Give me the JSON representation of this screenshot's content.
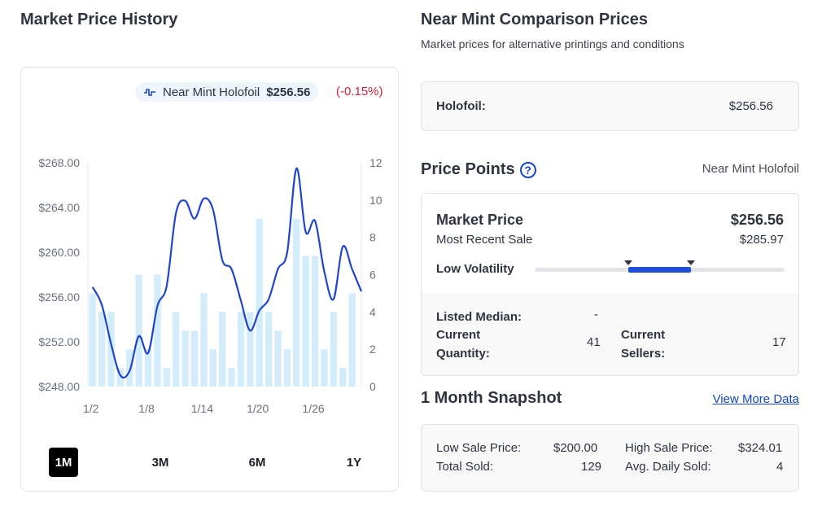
{
  "left": {
    "title": "Market Price History",
    "legend": {
      "label": "Near Mint Holofoil",
      "price": "$256.56",
      "change": "(-0.15%)",
      "icon": "line-chart-icon"
    },
    "ranges": [
      "1M",
      "3M",
      "6M",
      "1Y"
    ],
    "active_range": "1M"
  },
  "chart_data": {
    "type": "line",
    "y_left_ticks": [
      "$268.00",
      "$264.00",
      "$260.00",
      "$256.00",
      "$252.00",
      "$248.00"
    ],
    "y_left_range": [
      248,
      268
    ],
    "y_right_ticks": [
      "12",
      "10",
      "8",
      "6",
      "4",
      "2",
      "0"
    ],
    "y_right_range": [
      0,
      12
    ],
    "x_tick_labels": [
      "1/2",
      "1/8",
      "1/14",
      "1/20",
      "1/26"
    ],
    "x_tick_days": [
      2,
      8,
      14,
      20,
      26
    ],
    "x_domain": [
      2,
      31
    ],
    "bars": {
      "name": "Quantity Sold",
      "color": "#d3ecfb",
      "days": [
        2,
        3,
        4,
        5,
        6,
        7,
        8,
        9,
        10,
        11,
        12,
        13,
        14,
        15,
        16,
        17,
        18,
        19,
        20,
        21,
        22,
        23,
        24,
        25,
        26,
        27,
        28,
        29,
        30
      ],
      "values": [
        5,
        4,
        4,
        1,
        2,
        6,
        2,
        6,
        1,
        4,
        3,
        3,
        5,
        2,
        4,
        1,
        4,
        4,
        9,
        4,
        3,
        2,
        9,
        7,
        7,
        2,
        4,
        1,
        5
      ]
    },
    "series": [
      {
        "name": "Near Mint Holofoil",
        "color": "#1f46c9",
        "days": [
          2,
          3,
          4,
          5,
          6,
          7,
          8,
          9,
          10,
          11,
          12,
          13,
          14,
          15,
          16,
          17,
          18,
          19,
          20,
          21,
          22,
          23,
          24,
          25,
          26,
          27,
          28,
          29,
          30,
          31
        ],
        "values": [
          256.9,
          255.3,
          251.8,
          249.0,
          249.4,
          252.5,
          251.0,
          255.2,
          257.0,
          263.5,
          264.6,
          263.0,
          264.8,
          263.8,
          259.3,
          258.5,
          255.7,
          253.0,
          254.8,
          255.8,
          258.5,
          260.0,
          267.5,
          261.8,
          262.8,
          258.3,
          255.8,
          260.5,
          258.5,
          256.5
        ]
      }
    ]
  },
  "right": {
    "title": "Near Mint Comparison Prices",
    "subtitle": "Market prices for alternative printings and conditions",
    "holofoil": {
      "label": "Holofoil:",
      "value": "$256.56"
    },
    "price_points": {
      "title": "Price Points",
      "help_icon": "question-circle-icon",
      "condition": "Near Mint Holofoil",
      "market_price_label": "Market Price",
      "market_price_value": "$256.56",
      "recent_sale_label": "Most Recent Sale",
      "recent_sale_value": "$285.97",
      "volatility_label": "Low Volatility",
      "volatility_range": [
        0.375,
        0.625
      ],
      "listed_median_label": "Listed Median:",
      "listed_median_value": "-",
      "current_quantity_label_1": "Current",
      "current_quantity_label_2": "Quantity:",
      "current_quantity_value": "41",
      "current_sellers_label_1": "Current",
      "current_sellers_label_2": "Sellers:",
      "current_sellers_value": "17"
    },
    "snapshot": {
      "title": "1 Month Snapshot",
      "link": "View More Data",
      "low_sale_label": "Low Sale Price:",
      "low_sale_value": "$200.00",
      "high_sale_label": "High Sale Price:",
      "high_sale_value": "$324.01",
      "total_sold_label": "Total Sold:",
      "total_sold_value": "129",
      "avg_daily_label": "Avg. Daily Sold:",
      "avg_daily_value": "4"
    }
  }
}
